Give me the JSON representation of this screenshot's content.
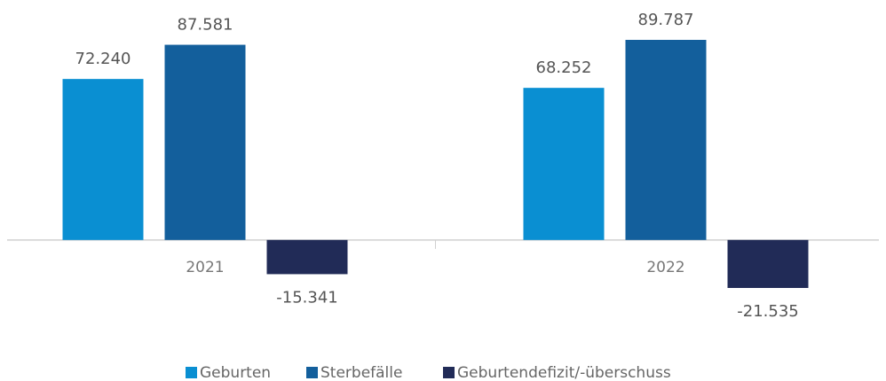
{
  "chart_data": {
    "type": "bar",
    "categories": [
      "2021",
      "2022"
    ],
    "series": [
      {
        "name": "Geburten",
        "color": "#0a8fd2",
        "values": [
          72240,
          68252
        ],
        "value_labels": [
          "72.240",
          "68.252"
        ]
      },
      {
        "name": "Sterbefälle",
        "color": "#135f9c",
        "values": [
          87581,
          89787
        ],
        "value_labels": [
          "87.581",
          "89.787"
        ]
      },
      {
        "name": "Geburtendefizit/-überschuss",
        "color": "#212b57",
        "values": [
          -15341,
          -21535
        ],
        "value_labels": [
          "-15.341",
          "-21.535"
        ]
      }
    ],
    "legend": "bottom"
  }
}
